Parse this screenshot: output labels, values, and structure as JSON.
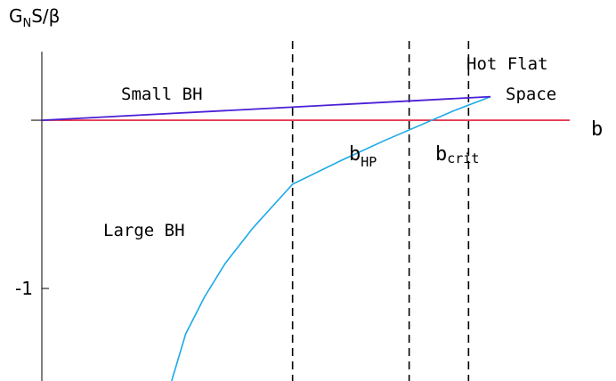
{
  "chart_data": {
    "type": "line",
    "title": "",
    "ylabel": {
      "main": "G",
      "sub": "N",
      "rest": "S/β"
    },
    "xlabel": "b",
    "xlim": [
      0,
      1.2
    ],
    "ylim": [
      -1.55,
      0.45
    ],
    "ytick": {
      "value": -1,
      "label": "-1"
    },
    "grid": false,
    "legend": "none",
    "colors": {
      "small_bh": "#4b1fd6",
      "large_bh": "#1aa9e8",
      "hot_flat_space": "#e0203a",
      "axis": "#000000",
      "dashed": "#000000"
    },
    "series": [
      {
        "name": "Small BH",
        "x": [
          0.0,
          1.02
        ],
        "y": [
          0.0,
          0.14
        ]
      },
      {
        "name": "Large BH",
        "x": [
          0.295,
          0.327,
          0.37,
          0.417,
          0.48,
          0.57,
          0.68,
          0.78,
          0.86,
          0.94,
          1.02
        ],
        "y": [
          -1.55,
          -1.27,
          -1.05,
          -0.85,
          -0.64,
          -0.38,
          -0.24,
          -0.12,
          -0.03,
          0.06,
          0.14
        ]
      },
      {
        "name": "Hot Flat Space",
        "x": [
          0.0,
          1.2
        ],
        "y": [
          0.0,
          0.0
        ]
      }
    ],
    "vlines": [
      {
        "x": 0.57,
        "label": ""
      },
      {
        "x": 0.835,
        "label": "b",
        "sub": "HP"
      },
      {
        "x": 0.97,
        "label": "b",
        "sub": "crit"
      }
    ],
    "annotations": {
      "small_bh": "Small BH",
      "large_bh": "Large BH",
      "hot_flat_line1": "Hot Flat",
      "hot_flat_line2": "Space"
    }
  }
}
